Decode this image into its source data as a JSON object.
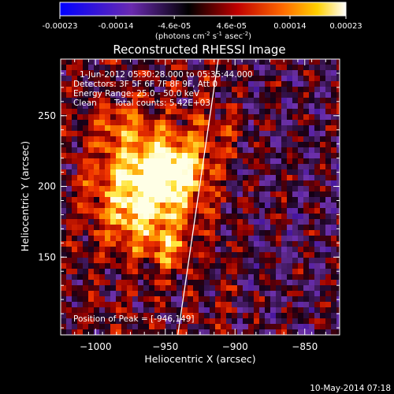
{
  "chart_data": {
    "type": "heatmap",
    "title": "Reconstructed RHESSI Image",
    "xlabel": "Heliocentric X (arcsec)",
    "ylabel": "Heliocentric Y (arcsec)",
    "xlim": [
      -1025,
      -825
    ],
    "ylim": [
      95,
      290
    ],
    "x_ticks": [
      -1000,
      -950,
      -900,
      -850
    ],
    "x_tick_labels": [
      "−1000",
      "−950",
      "−900",
      "−850"
    ],
    "y_ticks": [
      150,
      200,
      250
    ],
    "y_tick_labels": [
      "150",
      "200",
      "250"
    ],
    "colorbar": {
      "label_main": "(photons cm",
      "label_exp1": "-2",
      "label_mid": " s",
      "label_exp2": "-1",
      "label_tail": " asec",
      "label_exp3": "-2",
      "label_close": ")",
      "range": [
        -0.00023,
        0.00023
      ],
      "tick_values": [
        -0.00023,
        -0.00014,
        -4.6e-05,
        4.6e-05,
        0.00014,
        0.00023
      ],
      "tick_labels": [
        "-0.00023",
        "-0.00014",
        "-4.6e-05",
        "4.6e-05",
        "0.00014",
        "0.00023"
      ],
      "colormap": [
        "#0000ff",
        "#000000",
        "#ff0000",
        "#ffff00",
        "#ffffff"
      ]
    },
    "annotations": {
      "time_range": "1-Jun-2012 05:30:28.000 to 05:35:44.000",
      "detectors": "Detectors: 3F 5F 6F 7F 8F 9F, Att 0",
      "energy": "Energy Range: 25.0 - 50.0 keV",
      "method": "Clean",
      "counts": "Total counts: 5.42E+03",
      "peak": "Position of Peak = [-946,149]"
    },
    "peak_position": [
      -946,
      149
    ],
    "limb_line": [
      [
        -941,
        95
      ],
      [
        -912,
        290
      ]
    ],
    "grid": false,
    "legend": "none"
  },
  "footer": {
    "timestamp": "10-May-2014 07:18"
  }
}
